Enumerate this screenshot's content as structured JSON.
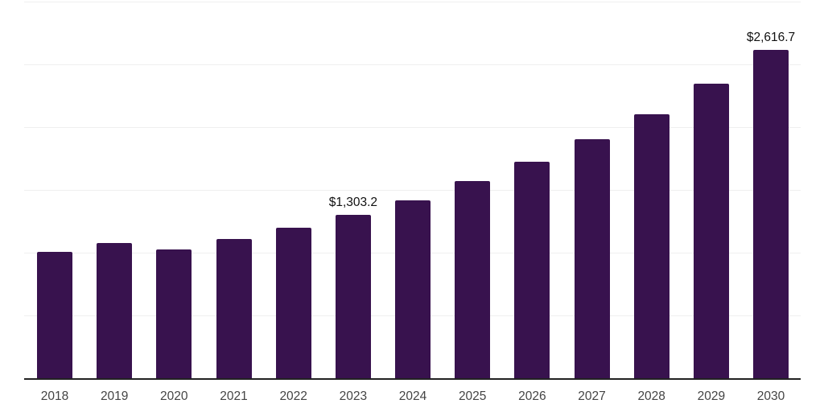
{
  "chart_data": {
    "type": "bar",
    "title": "",
    "xlabel": "",
    "ylabel": "",
    "categories": [
      "2018",
      "2019",
      "2020",
      "2021",
      "2022",
      "2023",
      "2024",
      "2025",
      "2026",
      "2027",
      "2028",
      "2029",
      "2030"
    ],
    "values": [
      1005,
      1075,
      1025,
      1110,
      1197,
      1303.2,
      1417,
      1568,
      1722,
      1901,
      2106,
      2349,
      2616.7
    ],
    "data_labels": {
      "2023": "$1,303.2",
      "2030": "$2,616.7"
    },
    "ylim": [
      0,
      3000
    ],
    "gridline_values": [
      500,
      1000,
      1500,
      2000,
      2500,
      3000
    ],
    "grid": true,
    "legend": "none",
    "colors": {
      "bar": "#38124e",
      "grid": "#efefef",
      "axis": "#222222",
      "tick_label": "#444444",
      "data_label": "#111111",
      "background": "#ffffff"
    }
  }
}
